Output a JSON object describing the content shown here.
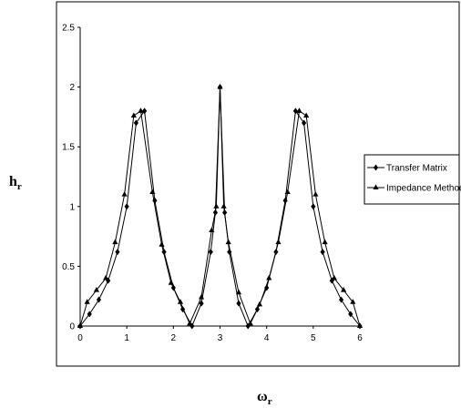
{
  "chart_data": {
    "type": "line",
    "title": "",
    "xlabel": "ω",
    "xlabel_sub": "r",
    "ylabel": "h",
    "ylabel_sub": "r",
    "xlim": [
      0,
      6
    ],
    "ylim": [
      0,
      2.5
    ],
    "xticks": [
      "0",
      "1",
      "2",
      "3",
      "4",
      "5",
      "6"
    ],
    "yticks": [
      "0",
      "0.5",
      "1",
      "1.5",
      "2",
      "2.5"
    ],
    "grid": false,
    "legend_position": "right",
    "series": [
      {
        "name": "Transfer Matrix",
        "marker": "diamond",
        "x": [
          0,
          0.2,
          0.4,
          0.6,
          0.8,
          1.0,
          1.2,
          1.38,
          1.6,
          1.8,
          2.0,
          2.2,
          2.4,
          2.6,
          2.8,
          2.9,
          3.0,
          3.1,
          3.2,
          3.4,
          3.6,
          3.8,
          4.0,
          4.2,
          4.4,
          4.62,
          4.8,
          5.0,
          5.2,
          5.4,
          5.6,
          5.8,
          6.0
        ],
        "y": [
          0,
          0.1,
          0.22,
          0.38,
          0.62,
          1.0,
          1.7,
          1.8,
          1.05,
          0.62,
          0.32,
          0.14,
          0,
          0.19,
          0.62,
          0.95,
          2.0,
          0.95,
          0.62,
          0.19,
          0,
          0.14,
          0.32,
          0.62,
          1.05,
          1.8,
          1.7,
          1.0,
          0.62,
          0.38,
          0.22,
          0.1,
          0
        ]
      },
      {
        "name": "Impedance Method",
        "marker": "triangle",
        "x": [
          0,
          0.15,
          0.35,
          0.55,
          0.75,
          0.95,
          1.15,
          1.3,
          1.55,
          1.75,
          1.95,
          2.15,
          2.35,
          2.6,
          2.82,
          2.92,
          3.0,
          3.08,
          3.18,
          3.4,
          3.65,
          3.85,
          4.05,
          4.25,
          4.45,
          4.7,
          4.85,
          5.05,
          5.25,
          5.45,
          5.65,
          5.85,
          6.0
        ],
        "y": [
          0,
          0.2,
          0.3,
          0.4,
          0.7,
          1.1,
          1.76,
          1.8,
          1.12,
          0.68,
          0.36,
          0.2,
          0.02,
          0.24,
          0.8,
          1.0,
          2.0,
          1.0,
          0.7,
          0.28,
          0.02,
          0.18,
          0.4,
          0.7,
          1.12,
          1.8,
          1.76,
          1.1,
          0.7,
          0.4,
          0.3,
          0.2,
          0
        ]
      }
    ]
  }
}
